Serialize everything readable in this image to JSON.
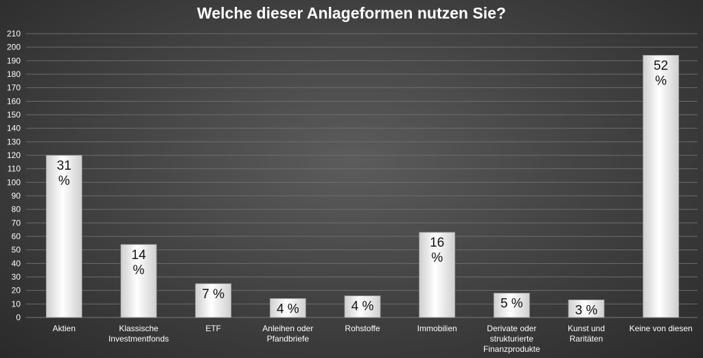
{
  "chart_data": {
    "type": "bar",
    "title": "Welche dieser Anlageformen nutzen Sie?",
    "categories": [
      [
        "Aktien"
      ],
      [
        "Klassische",
        "Investmentfonds"
      ],
      [
        "ETF"
      ],
      [
        "Anleihen oder",
        "Pfandbriefe"
      ],
      [
        "Rohstoffe"
      ],
      [
        "Immobilien"
      ],
      [
        "Derivate oder",
        "strukturierte",
        "Finanzprodukte"
      ],
      [
        "Kunst und",
        "Raritäten"
      ],
      [
        "Keine von diesen"
      ]
    ],
    "values": [
      120,
      54,
      25,
      14,
      16,
      63,
      18,
      13,
      194
    ],
    "data_labels": [
      [
        "31",
        "%"
      ],
      [
        "14",
        "%"
      ],
      [
        "7 %"
      ],
      [
        "4 %"
      ],
      [
        "4 %"
      ],
      [
        "16",
        "%"
      ],
      [
        "5 %"
      ],
      [
        "3 %"
      ],
      [
        "52",
        "%"
      ]
    ],
    "y_ticks": [
      "0",
      "10",
      "20",
      "30",
      "40",
      "50",
      "60",
      "70",
      "80",
      "90",
      "100",
      "110",
      "120",
      "130",
      "140",
      "150",
      "160",
      "170",
      "180",
      "190",
      "200",
      "210"
    ],
    "ylim": [
      0,
      210
    ],
    "xlabel": "",
    "ylabel": "",
    "grid": true,
    "colors": {
      "bar_fill_light": "#ffffff",
      "bar_fill_dark": "#cfcfcf",
      "bar_stroke": "#9a9a9a",
      "gridline": "#6e6e6e",
      "text": "#ffffff",
      "label_text": "#111111"
    }
  }
}
